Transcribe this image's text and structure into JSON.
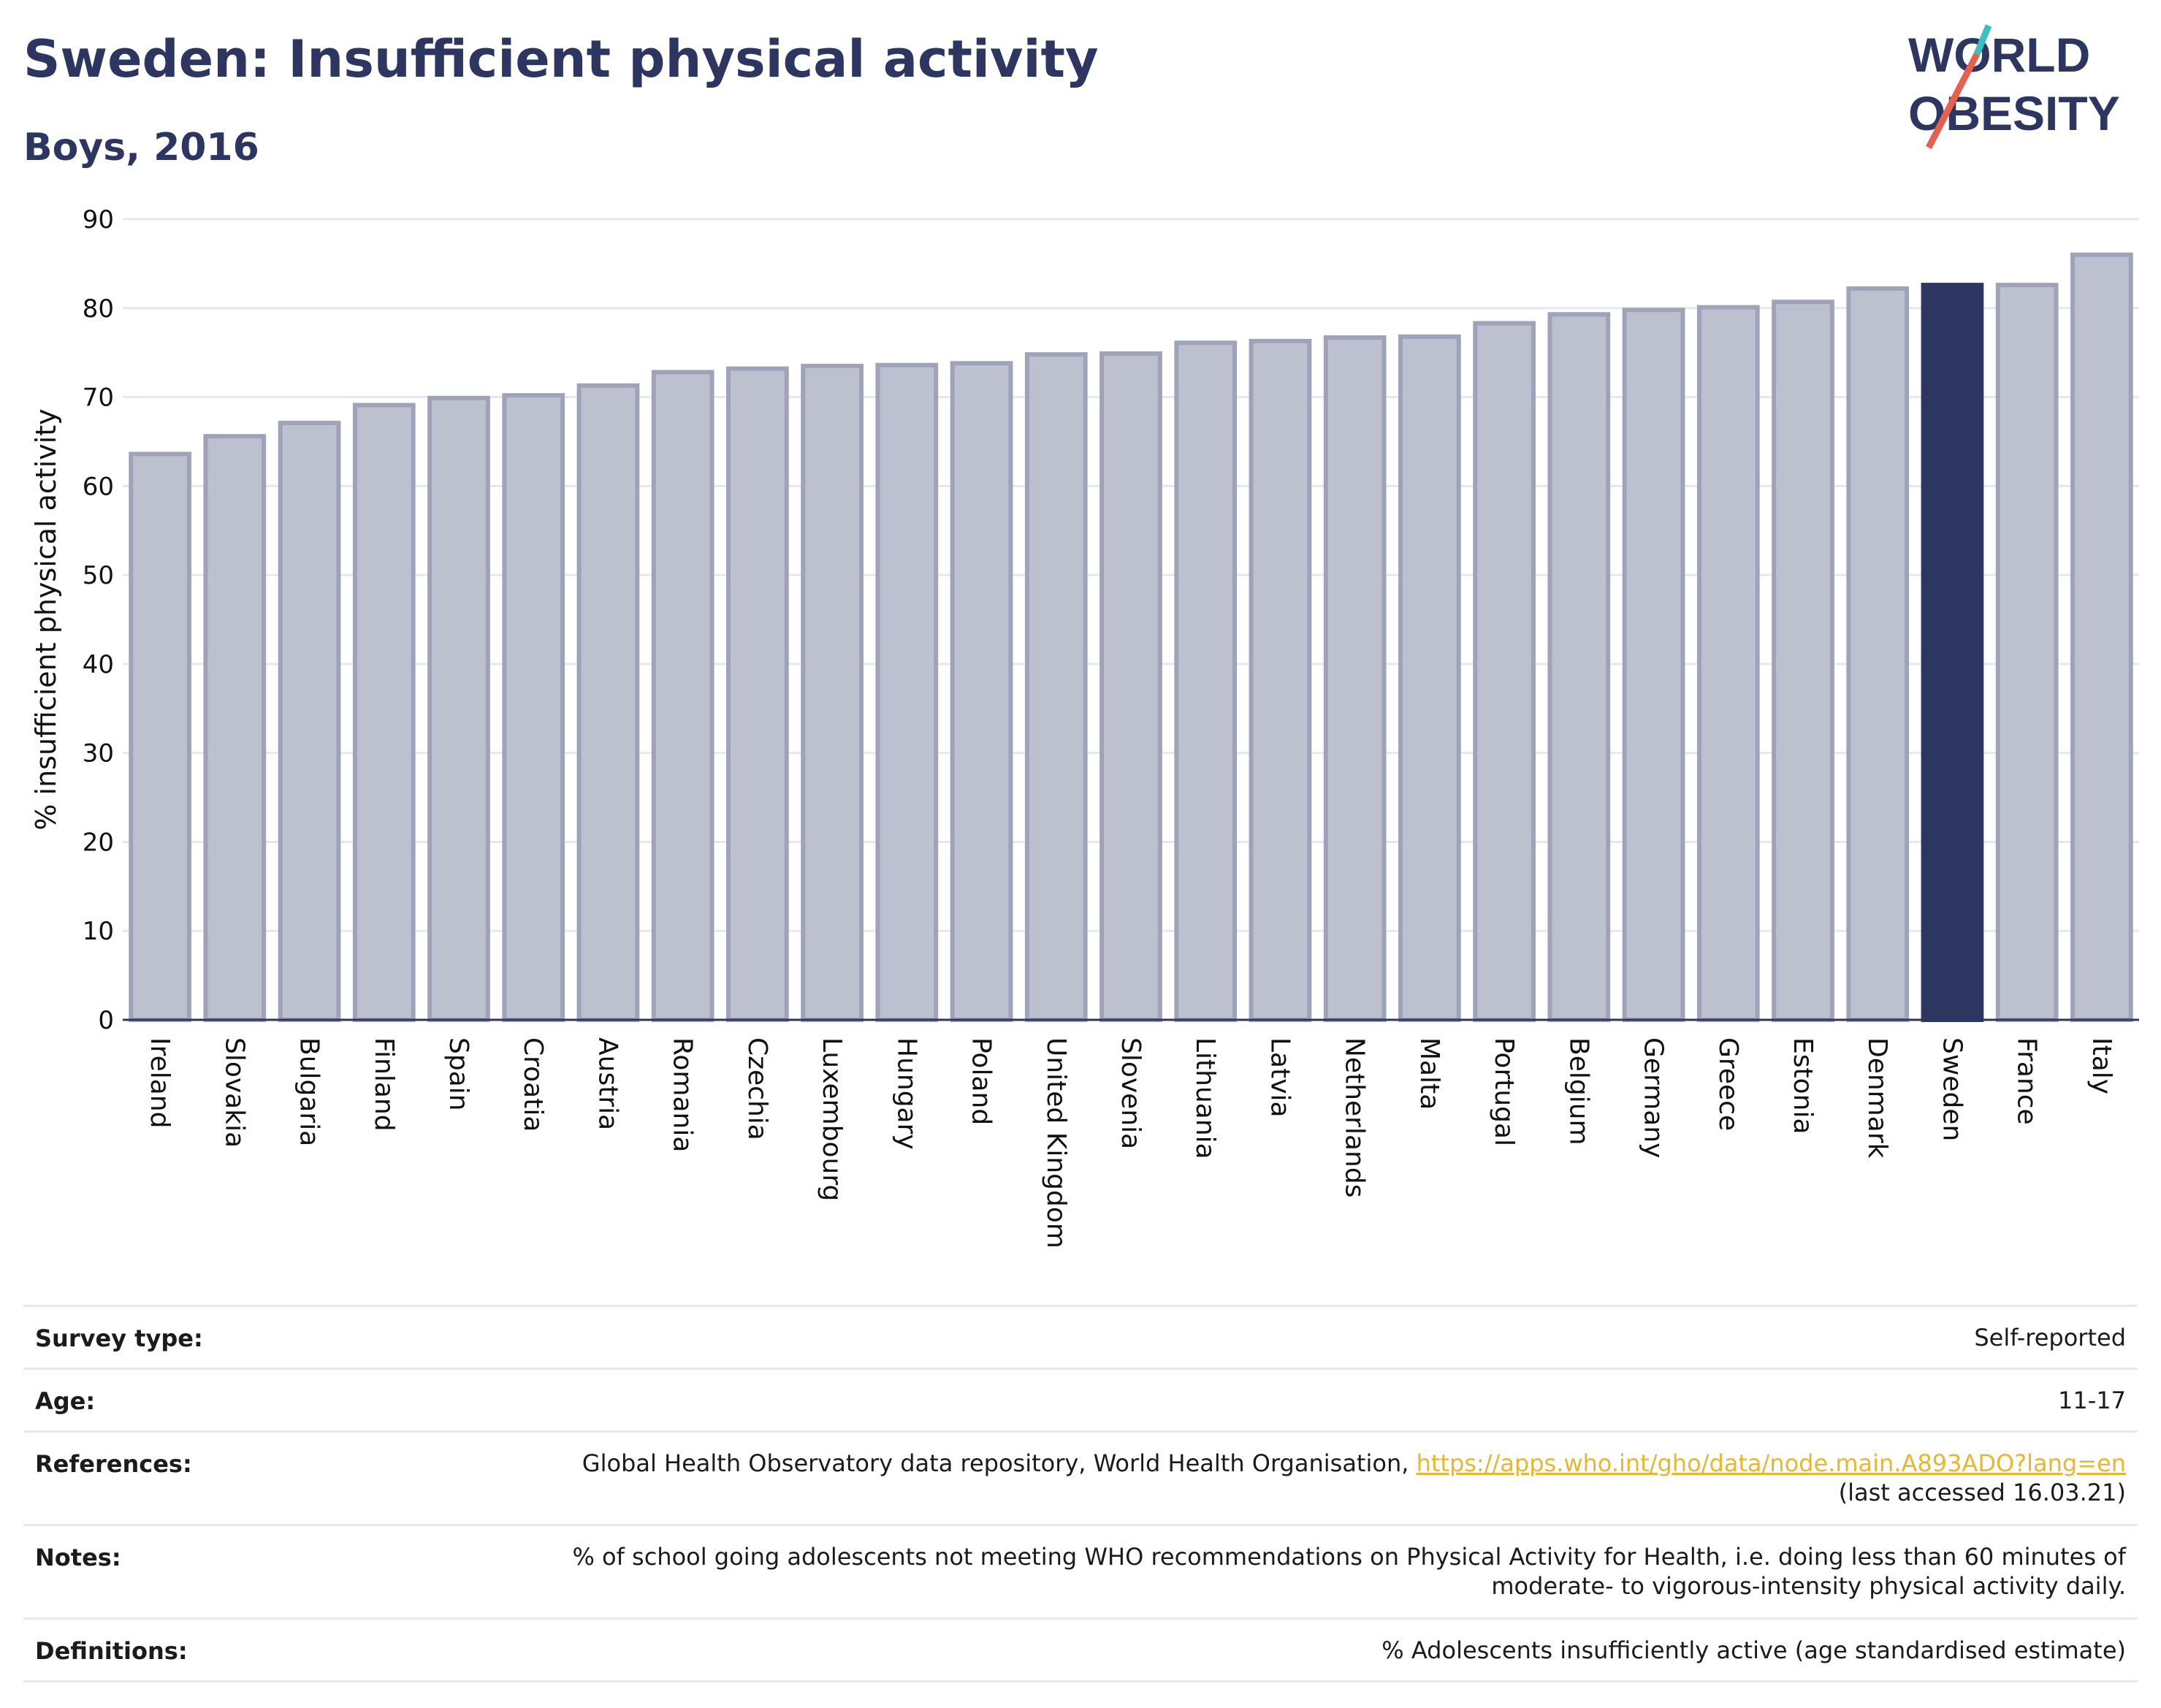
{
  "title": "Sweden: Insufficient physical activity",
  "subtitle": "Boys, 2016",
  "logo": {
    "line1": "WORLD",
    "line2": "OBESITY",
    "accent_colors": [
      "#3dbfbf",
      "#e5604f"
    ]
  },
  "colors": {
    "bar": "#bcc0cf",
    "bar_edge": "#9ea3ba",
    "highlight": "#2d3561",
    "axis_text": "#111111",
    "grid": "#e6e8ef"
  },
  "chart_data": {
    "type": "bar",
    "ylabel": "% insufficient physical activity",
    "ylim": [
      0,
      90
    ],
    "yticks": [
      0,
      10,
      20,
      30,
      40,
      50,
      60,
      70,
      80,
      90
    ],
    "grid": true,
    "highlight": "Sweden",
    "categories": [
      "Ireland",
      "Slovakia",
      "Bulgaria",
      "Finland",
      "Spain",
      "Croatia",
      "Austria",
      "Romania",
      "Czechia",
      "Luxembourg",
      "Hungary",
      "Poland",
      "United Kingdom",
      "Slovenia",
      "Lithuania",
      "Latvia",
      "Netherlands",
      "Malta",
      "Portugal",
      "Belgium",
      "Germany",
      "Greece",
      "Estonia",
      "Denmark",
      "Sweden",
      "France",
      "Italy"
    ],
    "values": [
      63.6,
      65.6,
      67.1,
      69.1,
      69.9,
      70.2,
      71.3,
      72.8,
      73.2,
      73.5,
      73.6,
      73.8,
      74.8,
      74.9,
      76.1,
      76.3,
      76.7,
      76.8,
      78.3,
      79.3,
      79.8,
      80.1,
      80.7,
      82.2,
      82.6,
      82.6,
      86.0
    ]
  },
  "info_table": [
    {
      "label": "Survey type:",
      "lines": [
        {
          "text": "Self-reported"
        }
      ]
    },
    {
      "label": "Age:",
      "lines": [
        {
          "text": "11-17"
        }
      ]
    },
    {
      "label": "References:",
      "lines": [
        {
          "text": "Global Health Observatory data repository, World Health Organisation, ",
          "link": "https://apps.who.int/gho/data/node.main.A893ADO?lang=en"
        },
        {
          "text": "(last accessed 16.03.21)"
        }
      ]
    },
    {
      "label": "Notes:",
      "lines": [
        {
          "text": "% of school going adolescents not meeting WHO recommendations on Physical Activity for Health, i.e. doing less than 60 minutes of"
        },
        {
          "text": "moderate- to vigorous-intensity physical activity daily."
        }
      ]
    },
    {
      "label": "Definitions:",
      "lines": [
        {
          "text": "% Adolescents insufficiently active (age standardised estimate)"
        }
      ]
    }
  ]
}
